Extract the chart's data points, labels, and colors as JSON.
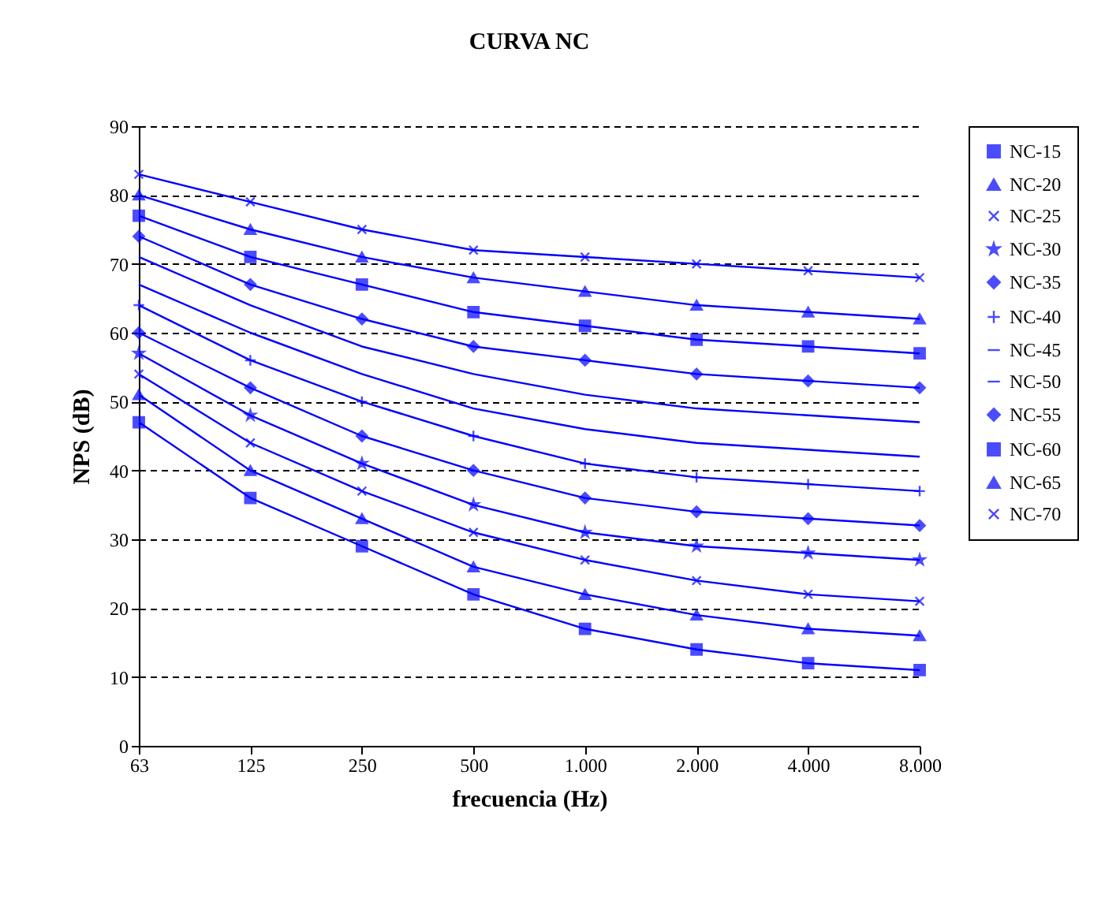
{
  "chart_data": {
    "type": "line",
    "title": "CURVA NC",
    "xlabel": "frecuencia (Hz)",
    "ylabel": "NPS (dB)",
    "categories": [
      "63",
      "125",
      "250",
      "500",
      "1.000",
      "2.000",
      "4.000",
      "8.000"
    ],
    "ylim": [
      0,
      90
    ],
    "yticks": [
      0,
      10,
      20,
      30,
      40,
      50,
      60,
      70,
      80,
      90
    ],
    "grid": "y",
    "legend": "right",
    "series": [
      {
        "name": "NC-15",
        "color": "#0000ff",
        "marker": "square",
        "values": [
          47,
          36,
          29,
          22,
          17,
          14,
          12,
          11
        ]
      },
      {
        "name": "NC-20",
        "color": "#0000ff",
        "marker": "triangle",
        "values": [
          51,
          40,
          33,
          26,
          22,
          19,
          17,
          16
        ]
      },
      {
        "name": "NC-25",
        "color": "#0000ff",
        "marker": "cross",
        "values": [
          54,
          44,
          37,
          31,
          27,
          24,
          22,
          21
        ]
      },
      {
        "name": "NC-30",
        "color": "#0000ff",
        "marker": "star",
        "values": [
          57,
          48,
          41,
          35,
          31,
          29,
          28,
          27
        ]
      },
      {
        "name": "NC-35",
        "color": "#0000ff",
        "marker": "diamond",
        "values": [
          60,
          52,
          45,
          40,
          36,
          34,
          33,
          32
        ]
      },
      {
        "name": "NC-40",
        "color": "#0000ff",
        "marker": "plus",
        "values": [
          64,
          56,
          50,
          45,
          41,
          39,
          38,
          37
        ]
      },
      {
        "name": "NC-45",
        "color": "#0000ff",
        "marker": "none",
        "values": [
          67,
          60,
          54,
          49,
          46,
          44,
          43,
          42
        ]
      },
      {
        "name": "NC-50",
        "color": "#0000ff",
        "marker": "none",
        "values": [
          71,
          64,
          58,
          54,
          51,
          49,
          48,
          47
        ]
      },
      {
        "name": "NC-55",
        "color": "#0000ff",
        "marker": "diamond",
        "values": [
          74,
          67,
          62,
          58,
          56,
          54,
          53,
          52
        ]
      },
      {
        "name": "NC-60",
        "color": "#0000ff",
        "marker": "square",
        "values": [
          77,
          71,
          67,
          63,
          61,
          59,
          58,
          57
        ]
      },
      {
        "name": "NC-65",
        "color": "#0000ff",
        "marker": "triangle",
        "values": [
          80,
          75,
          71,
          68,
          66,
          64,
          63,
          62
        ]
      },
      {
        "name": "NC-70",
        "color": "#0000ff",
        "marker": "cross",
        "values": [
          83,
          79,
          75,
          72,
          71,
          70,
          69,
          68
        ]
      }
    ]
  }
}
